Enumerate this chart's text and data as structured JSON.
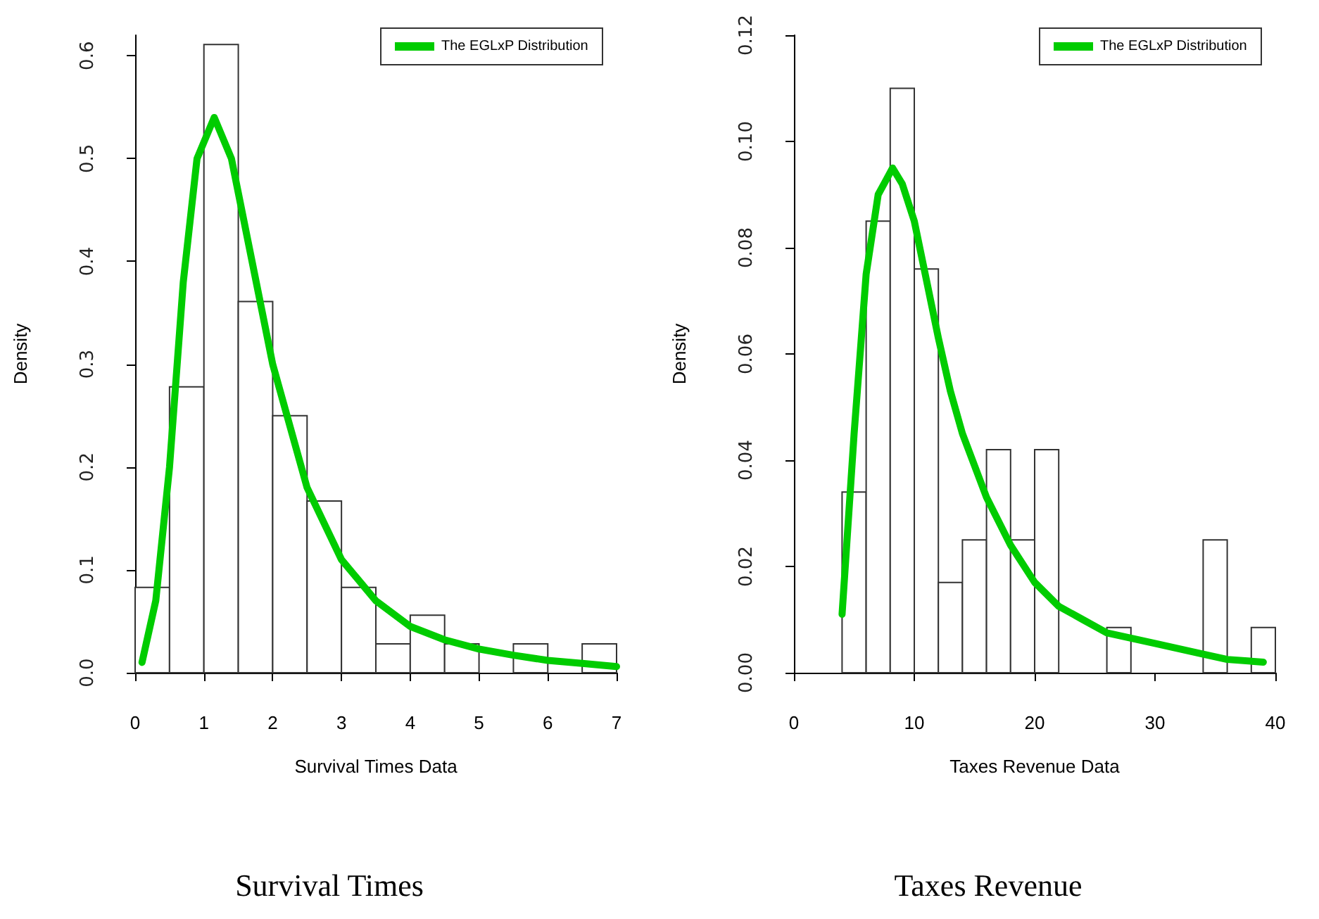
{
  "chart_data": [
    {
      "type": "histogram",
      "title": "Survival Times",
      "xlabel": "Survival Times Data",
      "ylabel": "Density",
      "xlim": [
        0,
        7
      ],
      "xticks": [
        0,
        1,
        2,
        3,
        4,
        5,
        6,
        7
      ],
      "ylim": [
        0,
        0.62
      ],
      "yticks": [
        {
          "value": 0,
          "label": "0.0"
        },
        0.1,
        0.2,
        0.3,
        0.4,
        0.5,
        0.6
      ],
      "grid": false,
      "legend": "top right",
      "series": [
        {
          "type": "histogram",
          "color": "#ffffff",
          "bins": [
            0,
            0.5,
            1,
            1.5,
            2,
            2.5,
            3,
            3.5,
            4,
            4.5,
            5,
            5.5,
            6,
            6.5,
            7
          ],
          "values": [
            0.083,
            0.278,
            0.611,
            0.361,
            0.25,
            0.167,
            0.083,
            0.028,
            0.056,
            0.028,
            0,
            0.028,
            0,
            0.028
          ]
        },
        {
          "type": "line",
          "name": "The EGLxP Distribution",
          "color": "#00cc00",
          "marker": "none",
          "line_style": "solid",
          "x": [
            0.1,
            0.3,
            0.5,
            0.7,
            0.9,
            1.15,
            1.4,
            1.7,
            2,
            2.5,
            3,
            3.5,
            4,
            4.5,
            5,
            5.5,
            6,
            6.5,
            7
          ],
          "values": [
            0.01,
            0.07,
            0.2,
            0.38,
            0.5,
            0.54,
            0.5,
            0.4,
            0.3,
            0.18,
            0.11,
            0.07,
            0.045,
            0.032,
            0.023,
            0.017,
            0.012,
            0.009,
            0.006
          ]
        }
      ]
    },
    {
      "type": "histogram",
      "title": "Taxes Revenue",
      "xlabel": "Taxes Revenue Data",
      "ylabel": "Density",
      "xlim": [
        0,
        40
      ],
      "xticks": [
        0,
        10,
        20,
        30,
        40
      ],
      "ylim": [
        0,
        0.12
      ],
      "yticks": [
        {
          "value": 0,
          "label": "0.00"
        },
        {
          "value": 0.02,
          "label": "0.02"
        },
        {
          "value": 0.04,
          "label": "0.04"
        },
        {
          "value": 0.06,
          "label": "0.06"
        },
        {
          "value": 0.08,
          "label": "0.08"
        },
        {
          "value": 0.1,
          "label": "0.10"
        },
        {
          "value": 0.12,
          "label": "0.12"
        }
      ],
      "grid": false,
      "legend": "top right",
      "series": [
        {
          "type": "histogram",
          "color": "#ffffff",
          "bins": [
            4,
            6,
            8,
            10,
            12,
            14,
            16,
            18,
            20,
            22,
            24,
            26,
            28,
            30,
            32,
            34,
            36,
            38,
            40
          ],
          "values": [
            0.034,
            0.085,
            0.11,
            0.076,
            0.017,
            0.025,
            0.042,
            0.025,
            0.042,
            0,
            0,
            0.0085,
            0,
            0,
            0,
            0.025,
            0,
            0.0085
          ]
        },
        {
          "type": "line",
          "name": "The EGLxP Distribution",
          "color": "#00cc00",
          "marker": "none",
          "line_style": "solid",
          "x": [
            4,
            5,
            6,
            7,
            8.2,
            9,
            10,
            11,
            12,
            13,
            14,
            16,
            18,
            20,
            22,
            24,
            26,
            28,
            30,
            34,
            36,
            39
          ],
          "values": [
            0.011,
            0.045,
            0.075,
            0.09,
            0.095,
            0.092,
            0.085,
            0.074,
            0.063,
            0.053,
            0.045,
            0.033,
            0.024,
            0.017,
            0.0125,
            0.01,
            0.0075,
            0.0065,
            0.0055,
            0.0035,
            0.0025,
            0.002
          ]
        }
      ]
    }
  ]
}
